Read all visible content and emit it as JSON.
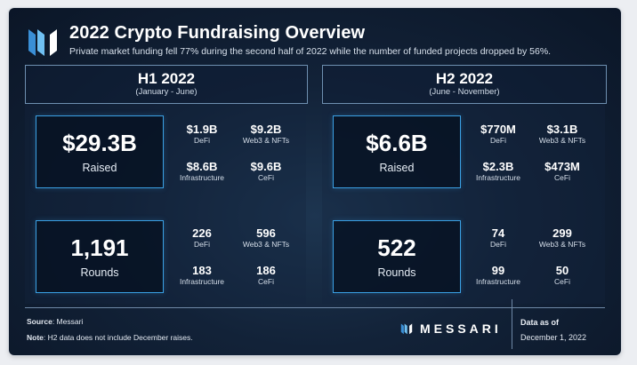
{
  "header": {
    "title": "2022 Crypto Fundraising Overview",
    "subtitle": "Private market funding fell 77% during the second half of 2022 while the number of funded projects dropped by 56%.",
    "logo_icon": "messari-logo-icon"
  },
  "h1": {
    "title": "H1 2022",
    "range": "(January - June)",
    "raised": {
      "value": "$29.3B",
      "label": "Raised",
      "breakdown": [
        {
          "value": "$1.9B",
          "label": "DeFi"
        },
        {
          "value": "$9.2B",
          "label": "Web3 & NFTs"
        },
        {
          "value": "$8.6B",
          "label": "Infrastructure"
        },
        {
          "value": "$9.6B",
          "label": "CeFi"
        }
      ]
    },
    "rounds": {
      "value": "1,191",
      "label": "Rounds",
      "breakdown": [
        {
          "value": "226",
          "label": "DeFi"
        },
        {
          "value": "596",
          "label": "Web3 & NFTs"
        },
        {
          "value": "183",
          "label": "Infrastructure"
        },
        {
          "value": "186",
          "label": "CeFi"
        }
      ]
    }
  },
  "h2": {
    "title": "H2 2022",
    "range": "(June - November)",
    "raised": {
      "value": "$6.6B",
      "label": "Raised",
      "breakdown": [
        {
          "value": "$770M",
          "label": "DeFi"
        },
        {
          "value": "$3.1B",
          "label": "Web3 & NFTs"
        },
        {
          "value": "$2.3B",
          "label": "Infrastructure"
        },
        {
          "value": "$473M",
          "label": "CeFi"
        }
      ]
    },
    "rounds": {
      "value": "522",
      "label": "Rounds",
      "breakdown": [
        {
          "value": "74",
          "label": "DeFi"
        },
        {
          "value": "299",
          "label": "Web3 & NFTs"
        },
        {
          "value": "99",
          "label": "Infrastructure"
        },
        {
          "value": "50",
          "label": "CeFi"
        }
      ]
    }
  },
  "footer": {
    "source_label": "Source",
    "source_value": ": Messari",
    "note_label": "Note",
    "note_value": ": H2 data does not include December raises.",
    "brand": "MESSARI",
    "asof_label": "Data as of",
    "asof_date": "December 1, 2022"
  },
  "colors": {
    "accent_border": "#3aa0e4",
    "header_border": "#6e8fb0",
    "background": "#122238"
  }
}
